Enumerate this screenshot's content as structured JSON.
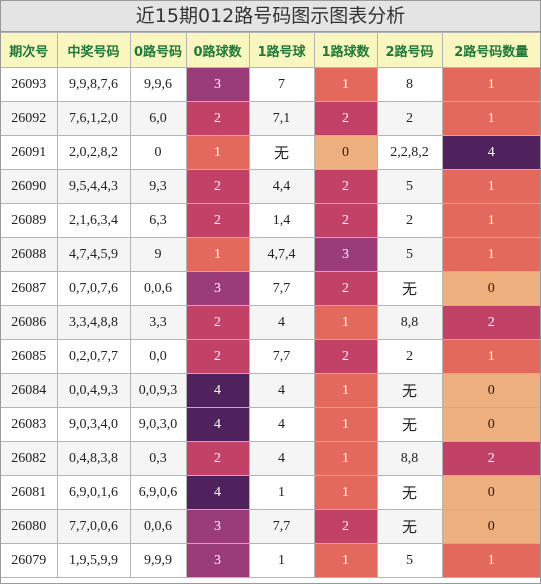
{
  "title": "近15期012路号码图示图表分析",
  "headers": [
    "期次号",
    "中奖号码",
    "0路号码",
    "0路球数",
    "1路号球",
    "1路球数",
    "2路号码",
    "2路号码数量"
  ],
  "none_text": "无",
  "colors": {
    "header_bg": "#faf6bf",
    "header_text": "#1f7a3a",
    "count_0": "#eeaf7e",
    "count_1": "#e2695c",
    "count_2": "#c14266",
    "count_3": "#9a3c7a",
    "count_4": "#50225d"
  },
  "rows": [
    {
      "issue": "26093",
      "numbers": "9,9,8,7,6",
      "r0": "9,9,6",
      "r0n": 3,
      "r1": "7",
      "r1n": 1,
      "r2": "8",
      "r2n": 1
    },
    {
      "issue": "26092",
      "numbers": "7,6,1,2,0",
      "r0": "6,0",
      "r0n": 2,
      "r1": "7,1",
      "r1n": 2,
      "r2": "2",
      "r2n": 1
    },
    {
      "issue": "26091",
      "numbers": "2,0,2,8,2",
      "r0": "0",
      "r0n": 1,
      "r1": "无",
      "r1n": 0,
      "r2": "2,2,8,2",
      "r2n": 4
    },
    {
      "issue": "26090",
      "numbers": "9,5,4,4,3",
      "r0": "9,3",
      "r0n": 2,
      "r1": "4,4",
      "r1n": 2,
      "r2": "5",
      "r2n": 1
    },
    {
      "issue": "26089",
      "numbers": "2,1,6,3,4",
      "r0": "6,3",
      "r0n": 2,
      "r1": "1,4",
      "r1n": 2,
      "r2": "2",
      "r2n": 1
    },
    {
      "issue": "26088",
      "numbers": "4,7,4,5,9",
      "r0": "9",
      "r0n": 1,
      "r1": "4,7,4",
      "r1n": 3,
      "r2": "5",
      "r2n": 1
    },
    {
      "issue": "26087",
      "numbers": "0,7,0,7,6",
      "r0": "0,0,6",
      "r0n": 3,
      "r1": "7,7",
      "r1n": 2,
      "r2": "无",
      "r2n": 0
    },
    {
      "issue": "26086",
      "numbers": "3,3,4,8,8",
      "r0": "3,3",
      "r0n": 2,
      "r1": "4",
      "r1n": 1,
      "r2": "8,8",
      "r2n": 2
    },
    {
      "issue": "26085",
      "numbers": "0,2,0,7,7",
      "r0": "0,0",
      "r0n": 2,
      "r1": "7,7",
      "r1n": 2,
      "r2": "2",
      "r2n": 1
    },
    {
      "issue": "26084",
      "numbers": "0,0,4,9,3",
      "r0": "0,0,9,3",
      "r0n": 4,
      "r1": "4",
      "r1n": 1,
      "r2": "无",
      "r2n": 0
    },
    {
      "issue": "26083",
      "numbers": "9,0,3,4,0",
      "r0": "9,0,3,0",
      "r0n": 4,
      "r1": "4",
      "r1n": 1,
      "r2": "无",
      "r2n": 0
    },
    {
      "issue": "26082",
      "numbers": "0,4,8,3,8",
      "r0": "0,3",
      "r0n": 2,
      "r1": "4",
      "r1n": 1,
      "r2": "8,8",
      "r2n": 2
    },
    {
      "issue": "26081",
      "numbers": "6,9,0,1,6",
      "r0": "6,9,0,6",
      "r0n": 4,
      "r1": "1",
      "r1n": 1,
      "r2": "无",
      "r2n": 0
    },
    {
      "issue": "26080",
      "numbers": "7,7,0,0,6",
      "r0": "0,0,6",
      "r0n": 3,
      "r1": "7,7",
      "r1n": 2,
      "r2": "无",
      "r2n": 0
    },
    {
      "issue": "26079",
      "numbers": "1,9,5,9,9",
      "r0": "9,9,9",
      "r0n": 3,
      "r1": "1",
      "r1n": 1,
      "r2": "5",
      "r2n": 1
    }
  ]
}
